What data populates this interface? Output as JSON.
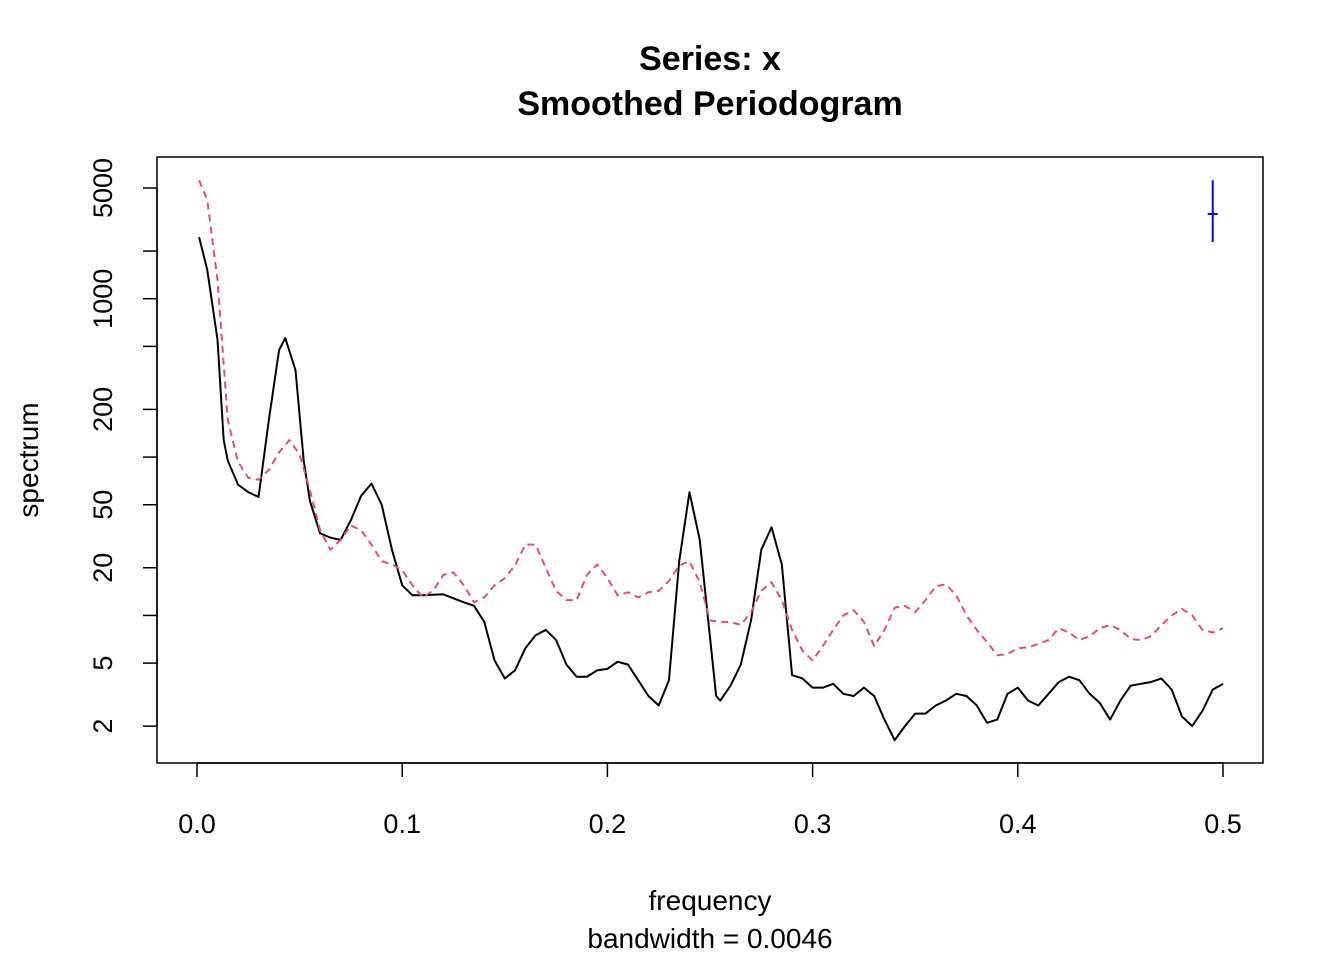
{
  "chart_data": {
    "type": "line",
    "title": "Series: x",
    "subtitle": "Smoothed Periodogram",
    "x_label": "frequency",
    "x_sublabel": "bandwidth = 0.0046",
    "y_label": "spectrum",
    "log_y": true,
    "xlim": [
      -0.0195,
      0.5195
    ],
    "ylim": [
      1.17,
      7850
    ],
    "xticks": [
      {
        "value": 0,
        "label": "0.0"
      },
      0.1,
      0.2,
      0.3,
      0.4,
      0.5
    ],
    "yticks": [
      2,
      5,
      20,
      50,
      200,
      1000,
      5000
    ],
    "yminor_ticks": [
      10,
      100,
      500,
      2000
    ],
    "series": [
      {
        "color": "#000000",
        "dash": false,
        "x": [
          0.001,
          0.005,
          0.01,
          0.013,
          0.015,
          0.02,
          0.025,
          0.03,
          0.035,
          0.04,
          0.043,
          0.048,
          0.052,
          0.055,
          0.06,
          0.065,
          0.07,
          0.075,
          0.08,
          0.085,
          0.09,
          0.095,
          0.1,
          0.105,
          0.11,
          0.12,
          0.13,
          0.135,
          0.14,
          0.145,
          0.15,
          0.155,
          0.16,
          0.165,
          0.17,
          0.175,
          0.18,
          0.185,
          0.19,
          0.195,
          0.2,
          0.205,
          0.21,
          0.215,
          0.22,
          0.225,
          0.23,
          0.235,
          0.24,
          0.245,
          0.253,
          0.255,
          0.26,
          0.265,
          0.27,
          0.275,
          0.28,
          0.285,
          0.29,
          0.295,
          0.3,
          0.305,
          0.31,
          0.315,
          0.32,
          0.325,
          0.33,
          0.335,
          0.34,
          0.345,
          0.35,
          0.355,
          0.36,
          0.365,
          0.37,
          0.375,
          0.38,
          0.385,
          0.39,
          0.395,
          0.4,
          0.405,
          0.41,
          0.415,
          0.42,
          0.425,
          0.43,
          0.435,
          0.44,
          0.445,
          0.45,
          0.455,
          0.46,
          0.465,
          0.47,
          0.475,
          0.48,
          0.485,
          0.49,
          0.495,
          0.5
        ],
        "values": [
          2450,
          1520,
          550,
          128,
          95,
          67,
          60,
          56,
          171,
          474,
          564,
          354,
          95,
          53,
          33,
          31,
          30,
          40,
          57,
          68,
          50,
          26,
          15.5,
          13.4,
          13.4,
          13.6,
          12.1,
          11.5,
          9.1,
          5.2,
          4.0,
          4.5,
          6.2,
          7.5,
          8.1,
          7.0,
          4.9,
          4.1,
          4.1,
          4.5,
          4.6,
          5.1,
          4.9,
          3.9,
          3.1,
          2.7,
          3.9,
          22,
          60,
          30,
          3.1,
          2.9,
          3.6,
          4.9,
          9.3,
          26,
          36,
          21,
          4.2,
          4.0,
          3.5,
          3.5,
          3.7,
          3.2,
          3.1,
          3.5,
          3.1,
          2.2,
          1.63,
          2.0,
          2.4,
          2.4,
          2.7,
          2.9,
          3.2,
          3.1,
          2.7,
          2.1,
          2.2,
          3.2,
          3.5,
          2.9,
          2.7,
          3.2,
          3.8,
          4.1,
          3.9,
          3.2,
          2.8,
          2.2,
          2.9,
          3.6,
          3.7,
          3.8,
          4.0,
          3.4,
          2.3,
          2.0,
          2.5,
          3.4,
          3.7
        ]
      },
      {
        "color": "#DF536B",
        "dash": true,
        "x": [
          0.001,
          0.005,
          0.01,
          0.015,
          0.02,
          0.025,
          0.03,
          0.035,
          0.04,
          0.045,
          0.05,
          0.055,
          0.06,
          0.065,
          0.07,
          0.075,
          0.08,
          0.085,
          0.09,
          0.095,
          0.1,
          0.105,
          0.11,
          0.115,
          0.12,
          0.125,
          0.13,
          0.135,
          0.14,
          0.145,
          0.15,
          0.155,
          0.16,
          0.165,
          0.17,
          0.175,
          0.18,
          0.185,
          0.19,
          0.195,
          0.2,
          0.205,
          0.21,
          0.215,
          0.22,
          0.225,
          0.23,
          0.235,
          0.24,
          0.245,
          0.25,
          0.255,
          0.26,
          0.265,
          0.27,
          0.275,
          0.28,
          0.285,
          0.29,
          0.295,
          0.3,
          0.305,
          0.31,
          0.315,
          0.32,
          0.325,
          0.33,
          0.335,
          0.34,
          0.345,
          0.35,
          0.355,
          0.36,
          0.365,
          0.37,
          0.375,
          0.38,
          0.385,
          0.39,
          0.395,
          0.4,
          0.405,
          0.41,
          0.415,
          0.42,
          0.425,
          0.43,
          0.435,
          0.44,
          0.445,
          0.45,
          0.455,
          0.46,
          0.465,
          0.47,
          0.475,
          0.48,
          0.485,
          0.49,
          0.495,
          0.5
        ],
        "values": [
          5600,
          4200,
          1310,
          171,
          93,
          74,
          72,
          83,
          107,
          128,
          104,
          62,
          34.5,
          26,
          30,
          37,
          34.5,
          28,
          22,
          21,
          19.3,
          15.5,
          13,
          14.3,
          18,
          18.7,
          15.5,
          12.1,
          13,
          15.5,
          17.2,
          20.7,
          28,
          28,
          19.9,
          14.3,
          12.5,
          12.5,
          18,
          21,
          17.2,
          13.4,
          14,
          13,
          14,
          14.3,
          16.5,
          20.7,
          22,
          16.2,
          9.3,
          9.1,
          9.1,
          8.7,
          10.5,
          14.3,
          16.2,
          12.5,
          8.1,
          6.0,
          5.2,
          6.4,
          8.1,
          10,
          10.8,
          9.1,
          6.4,
          8.1,
          11.2,
          11.5,
          10.5,
          12.5,
          15.3,
          15.7,
          13.4,
          10,
          8.1,
          6.8,
          5.6,
          5.7,
          6.2,
          6.3,
          6.6,
          7.0,
          8.3,
          7.8,
          7.0,
          7.4,
          8.3,
          8.7,
          8.1,
          7.1,
          7.0,
          7.4,
          8.7,
          10,
          11,
          10,
          8.1,
          7.8,
          8.3
        ]
      }
    ],
    "ci_bar": {
      "x": 0.495,
      "y": 3430,
      "lower": 2280,
      "upper": 5600,
      "color": "#0000FF"
    }
  }
}
